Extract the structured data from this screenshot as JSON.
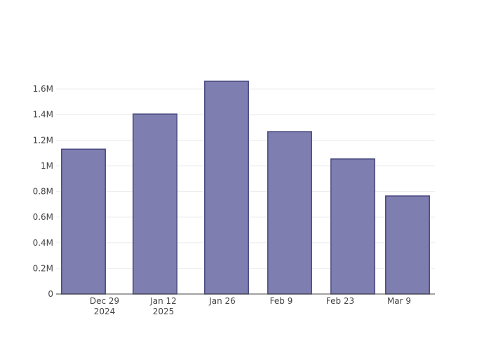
{
  "chart_data": {
    "type": "bar",
    "x": [
      "2024-12-24",
      "2025-01-10",
      "2025-01-27",
      "2025-02-11",
      "2025-02-26",
      "2025-03-11"
    ],
    "values": [
      1130000,
      1404000,
      1660000,
      1267000,
      1054000,
      765000
    ],
    "color": "#7e7eb0",
    "edge_color": "#48487f",
    "xlim": [
      "2024-12-17T12:00:00Z",
      "2025-03-17T12:00:00Z"
    ],
    "xticks": [
      {
        "value": "2024-12-29",
        "label": "Dec 29\n2024"
      },
      {
        "value": "2025-01-12",
        "label": "Jan 12\n2025"
      },
      {
        "value": "2025-01-26",
        "label": "Jan 26"
      },
      {
        "value": "2025-02-09",
        "label": "Feb 9"
      },
      {
        "value": "2025-02-23",
        "label": "Feb 23"
      },
      {
        "value": "2025-03-09",
        "label": "Mar 9"
      }
    ],
    "ylim": [
      0,
      1748000
    ],
    "yticks": [
      0,
      {
        "value": 200000,
        "label": "0.2M"
      },
      {
        "value": 400000,
        "label": "0.4M"
      },
      {
        "value": 600000,
        "label": "0.6M"
      },
      {
        "value": 800000,
        "label": "0.8M"
      },
      {
        "value": 1000000,
        "label": "1M"
      },
      {
        "value": 1200000,
        "label": "1.2M"
      },
      {
        "value": 1400000,
        "label": "1.4M"
      },
      {
        "value": 1600000,
        "label": "1.6M"
      }
    ],
    "grid": true
  }
}
